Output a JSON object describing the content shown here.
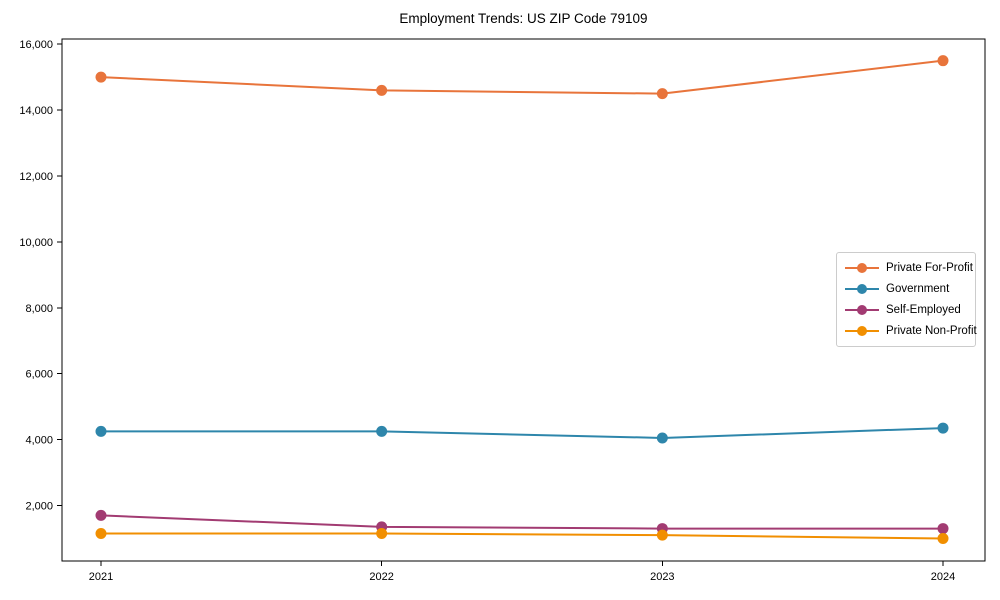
{
  "page": {
    "background": "#ffffff",
    "axis_color": "#000000",
    "legend_border_color": "#cccccc"
  },
  "chart_data": {
    "type": "line",
    "title": "Employment Trends: US ZIP Code 79109",
    "xlabel": "",
    "ylabel": "",
    "x": [
      2021,
      2022,
      2023,
      2024
    ],
    "x_tick_labels": [
      "2021",
      "2022",
      "2023",
      "2024"
    ],
    "y_ticks": [
      2000,
      4000,
      6000,
      8000,
      10000,
      12000,
      14000,
      16000
    ],
    "y_tick_labels": [
      "2,000",
      "4,000",
      "6,000",
      "8,000",
      "10,000",
      "12,000",
      "14,000",
      "16,000"
    ],
    "ylim": [
      300,
      16160
    ],
    "grid": false,
    "legend_position": "center-right",
    "marker": "circle",
    "series": [
      {
        "name": "Private For-Profit",
        "color": "#E8743B",
        "values": [
          15000,
          14600,
          14500,
          15500
        ]
      },
      {
        "name": "Government",
        "color": "#2E86AB",
        "values": [
          4250,
          4250,
          4050,
          4350
        ]
      },
      {
        "name": "Self-Employed",
        "color": "#A23B72",
        "values": [
          1700,
          1350,
          1300,
          1300
        ]
      },
      {
        "name": "Private Non-Profit",
        "color": "#F18F01",
        "values": [
          1150,
          1150,
          1100,
          1000
        ]
      }
    ]
  }
}
